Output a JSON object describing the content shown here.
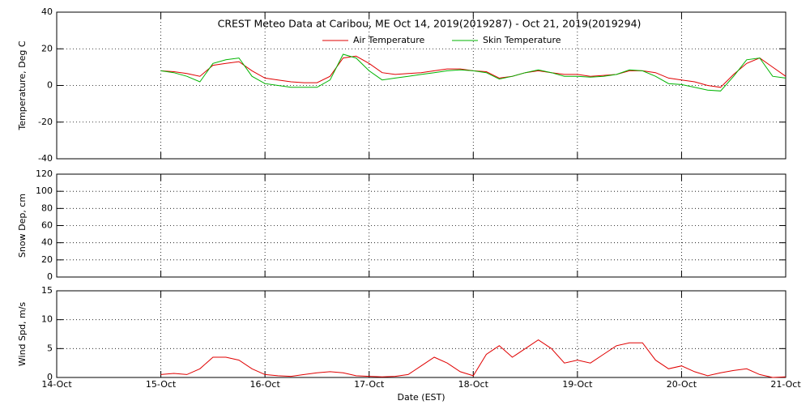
{
  "chart_data": [
    {
      "type": "line",
      "title": "CREST Meteo Data at Caribou, ME   Oct 14, 2019(2019287) - Oct 21, 2019(2019294)",
      "ylabel": "Temperature, Deg C",
      "xlim": [
        0,
        7
      ],
      "xticks": [
        0,
        1,
        2,
        3,
        4,
        5,
        6,
        7
      ],
      "ylim": [
        -40,
        40
      ],
      "yticks": [
        -40,
        -20,
        0,
        20,
        40
      ],
      "grid": true,
      "x": [
        1,
        1.125,
        1.25,
        1.375,
        1.5,
        1.625,
        1.75,
        1.875,
        2,
        2.125,
        2.25,
        2.375,
        2.5,
        2.625,
        2.75,
        2.875,
        3,
        3.125,
        3.25,
        3.375,
        3.5,
        3.625,
        3.75,
        3.875,
        4,
        4.125,
        4.25,
        4.375,
        4.5,
        4.625,
        4.75,
        4.875,
        5,
        5.125,
        5.25,
        5.375,
        5.5,
        5.625,
        5.75,
        5.875,
        6,
        6.125,
        6.25,
        6.375,
        6.5,
        6.625,
        6.75,
        6.875,
        7
      ],
      "series": [
        {
          "name": "Air Temperature",
          "color": "#e00000",
          "values": [
            8,
            7.5,
            6.5,
            5,
            11,
            12,
            13,
            8,
            4,
            3,
            2,
            1.5,
            1.5,
            5,
            15,
            16,
            12,
            7,
            6,
            6.5,
            7,
            8,
            9,
            9,
            8,
            7.5,
            4,
            5,
            7,
            8,
            7,
            6,
            6,
            5,
            5.5,
            6,
            8,
            8,
            7,
            4,
            3,
            2,
            0,
            -1,
            6,
            12,
            15,
            10,
            5
          ]
        },
        {
          "name": "Skin Temperature",
          "color": "#00b400",
          "values": [
            8,
            7,
            5,
            2,
            12,
            14,
            15,
            5,
            1,
            0,
            -1,
            -1,
            -1,
            3,
            17,
            15,
            8,
            3,
            4,
            5,
            6,
            7,
            8,
            8.5,
            8,
            7,
            3.5,
            5,
            7,
            8.5,
            7,
            5,
            5,
            4.5,
            5,
            6,
            8.5,
            8,
            5,
            1,
            0.5,
            -1,
            -2.5,
            -3,
            5,
            14,
            15,
            5,
            4
          ]
        }
      ]
    },
    {
      "type": "line",
      "ylabel": "Snow Dep, cm",
      "xlim": [
        0,
        7
      ],
      "xticks": [
        0,
        1,
        2,
        3,
        4,
        5,
        6,
        7
      ],
      "ylim": [
        0,
        120
      ],
      "yticks": [
        0,
        20,
        40,
        60,
        80,
        100,
        120
      ],
      "grid": true,
      "series": []
    },
    {
      "type": "line",
      "ylabel": "Wind Spd, m/s",
      "xlabel": "Date (EST)",
      "xlim": [
        0,
        7
      ],
      "xticks": [
        {
          "value": 0,
          "label": "14-Oct"
        },
        {
          "value": 1,
          "label": "15-Oct"
        },
        {
          "value": 2,
          "label": "16-Oct"
        },
        {
          "value": 3,
          "label": "17-Oct"
        },
        {
          "value": 4,
          "label": "18-Oct"
        },
        {
          "value": 5,
          "label": "19-Oct"
        },
        {
          "value": 6,
          "label": "20-Oct"
        },
        {
          "value": 7,
          "label": "21-Oct"
        }
      ],
      "ylim": [
        0,
        15
      ],
      "yticks": [
        0,
        5,
        10,
        15
      ],
      "grid": true,
      "x": [
        1,
        1.125,
        1.25,
        1.375,
        1.5,
        1.625,
        1.75,
        1.875,
        2,
        2.125,
        2.25,
        2.375,
        2.5,
        2.625,
        2.75,
        2.875,
        3,
        3.125,
        3.25,
        3.375,
        3.5,
        3.625,
        3.75,
        3.875,
        4,
        4.125,
        4.25,
        4.375,
        4.5,
        4.625,
        4.75,
        4.875,
        5,
        5.125,
        5.25,
        5.375,
        5.5,
        5.625,
        5.75,
        5.875,
        6,
        6.125,
        6.25,
        6.375,
        6.5,
        6.625,
        6.75,
        6.875,
        7
      ],
      "series": [
        {
          "color": "#e00000",
          "values": [
            0.5,
            0.7,
            0.5,
            1.5,
            3.5,
            3.5,
            3,
            1.5,
            0.5,
            0.3,
            0.2,
            0.5,
            0.8,
            1,
            0.8,
            0.3,
            0.2,
            0.1,
            0.2,
            0.5,
            2,
            3.5,
            2.5,
            1,
            0.3,
            4,
            5.5,
            3.5,
            5,
            6.5,
            5,
            2.5,
            3,
            2.5,
            4,
            5.5,
            6,
            6,
            3,
            1.5,
            2,
            1,
            0.3,
            0.8,
            1.2,
            1.5,
            0.5,
            0,
            0.1
          ]
        }
      ]
    }
  ]
}
